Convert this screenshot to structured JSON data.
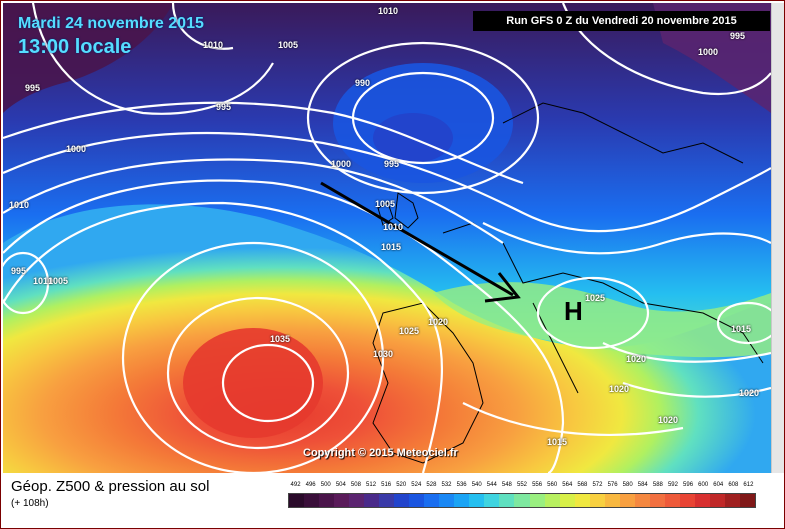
{
  "header": {
    "date": "Mardi 24 novembre 2015",
    "time": "13:00 locale",
    "run": "Run GFS 0 Z du Vendredi 20 novembre 2015"
  },
  "copyright": "Copyright © 2015 Meteociel.fr",
  "legend": {
    "title": "Géop. Z500 & pression au sol",
    "subtitle": "(+ 108h)",
    "scale": [
      "492",
      "496",
      "500",
      "504",
      "508",
      "512",
      "516",
      "520",
      "524",
      "528",
      "532",
      "536",
      "540",
      "544",
      "548",
      "552",
      "556",
      "560",
      "564",
      "568",
      "572",
      "576",
      "580",
      "584",
      "588",
      "592",
      "596",
      "600",
      "604",
      "608",
      "612"
    ],
    "scale_colors": [
      "#2a0a2a",
      "#3a0f3a",
      "#4a144a",
      "#5a1b5a",
      "#5b2470",
      "#4a2a8a",
      "#3a3aa8",
      "#2244cc",
      "#1a55e0",
      "#1a6ef0",
      "#1a88f5",
      "#1ba4f5",
      "#25bff0",
      "#3fd4e0",
      "#5fe0c0",
      "#7ee8a0",
      "#9aef80",
      "#b8f060",
      "#d8f048",
      "#f0e840",
      "#f8d040",
      "#f8b840",
      "#f8a040",
      "#f58840",
      "#f27040",
      "#ee5a3a",
      "#e84434",
      "#d83030",
      "#c02828",
      "#a02020",
      "#801818"
    ]
  },
  "map": {
    "isobar_labels": [
      "1010",
      "1005",
      "1010",
      "995",
      "995",
      "990",
      "1000",
      "995",
      "1000",
      "1000",
      "1010",
      "1005",
      "1010",
      "1015",
      "995",
      "1010",
      "1005",
      "1025",
      "1020",
      "1035",
      "1030",
      "1025",
      "1015",
      "1020",
      "1020",
      "1020",
      "1015",
      "1020",
      "1000",
      "995"
    ],
    "high_marker": "H"
  }
}
